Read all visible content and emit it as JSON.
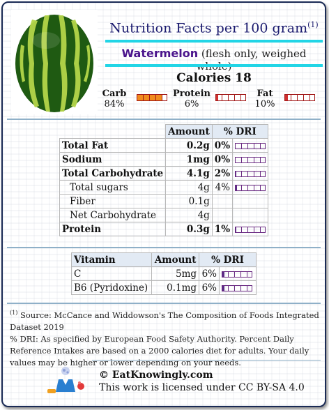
{
  "header": {
    "title": "Nutrition Facts per 100 gram",
    "footnote_marker": "(1)",
    "food_name": "Watermelon",
    "food_desc": "(flesh only, weighed whole)",
    "calories_label": "Calories 18"
  },
  "macros": [
    {
      "label": "Carb",
      "pct": "84%",
      "fill": 0.84,
      "color": "#f08a1c"
    },
    {
      "label": "Protein",
      "pct": "6%",
      "fill": 0.06,
      "color": "#d03030"
    },
    {
      "label": "Fat",
      "pct": "10%",
      "fill": 0.1,
      "color": "#d03030"
    }
  ],
  "nutrients": {
    "headers": [
      "Amount",
      "% DRI"
    ],
    "rows": [
      {
        "name": "Total Fat",
        "amount": "0.2g",
        "dri": "0%",
        "fill": 0.0,
        "bold": true
      },
      {
        "name": "Sodium",
        "amount": "1mg",
        "dri": "0%",
        "fill": 0.0,
        "bold": true
      },
      {
        "name": "Total Carbohydrate",
        "amount": "4.1g",
        "dri": "2%",
        "fill": 0.02,
        "bold": true
      },
      {
        "name": "Total sugars",
        "amount": "4g",
        "dri": "4%",
        "fill": 0.04,
        "bold": false
      },
      {
        "name": "Fiber",
        "amount": "0.1g",
        "dri": "",
        "fill": null,
        "bold": false
      },
      {
        "name": "Net Carbohydrate",
        "amount": "4g",
        "dri": "",
        "fill": null,
        "bold": false
      },
      {
        "name": "Protein",
        "amount": "0.3g",
        "dri": "1%",
        "fill": 0.01,
        "bold": true
      }
    ]
  },
  "vitamins": {
    "headers": [
      "Vitamin",
      "Amount",
      "% DRI"
    ],
    "rows": [
      {
        "name": "C",
        "amount": "5mg",
        "dri": "6%",
        "fill": 0.06
      },
      {
        "name": "B6 (Pyridoxine)",
        "amount": "0.1mg",
        "dri": "6%",
        "fill": 0.06
      }
    ]
  },
  "footer": {
    "marker": "(1)",
    "source": "Source: McCance and Widdowson's The Composition of Foods Integrated Dataset 2019",
    "dri_note": "% DRI: As specified by European Food Safety Authority. Percent Daily Reference Intakes are based on a 2000 calories diet for adults. Your daily values may be higher or lower depending on your needs.",
    "brand": "© EatKnowingly.com",
    "license": "This work is licensed under CC BY-SA 4.0"
  }
}
